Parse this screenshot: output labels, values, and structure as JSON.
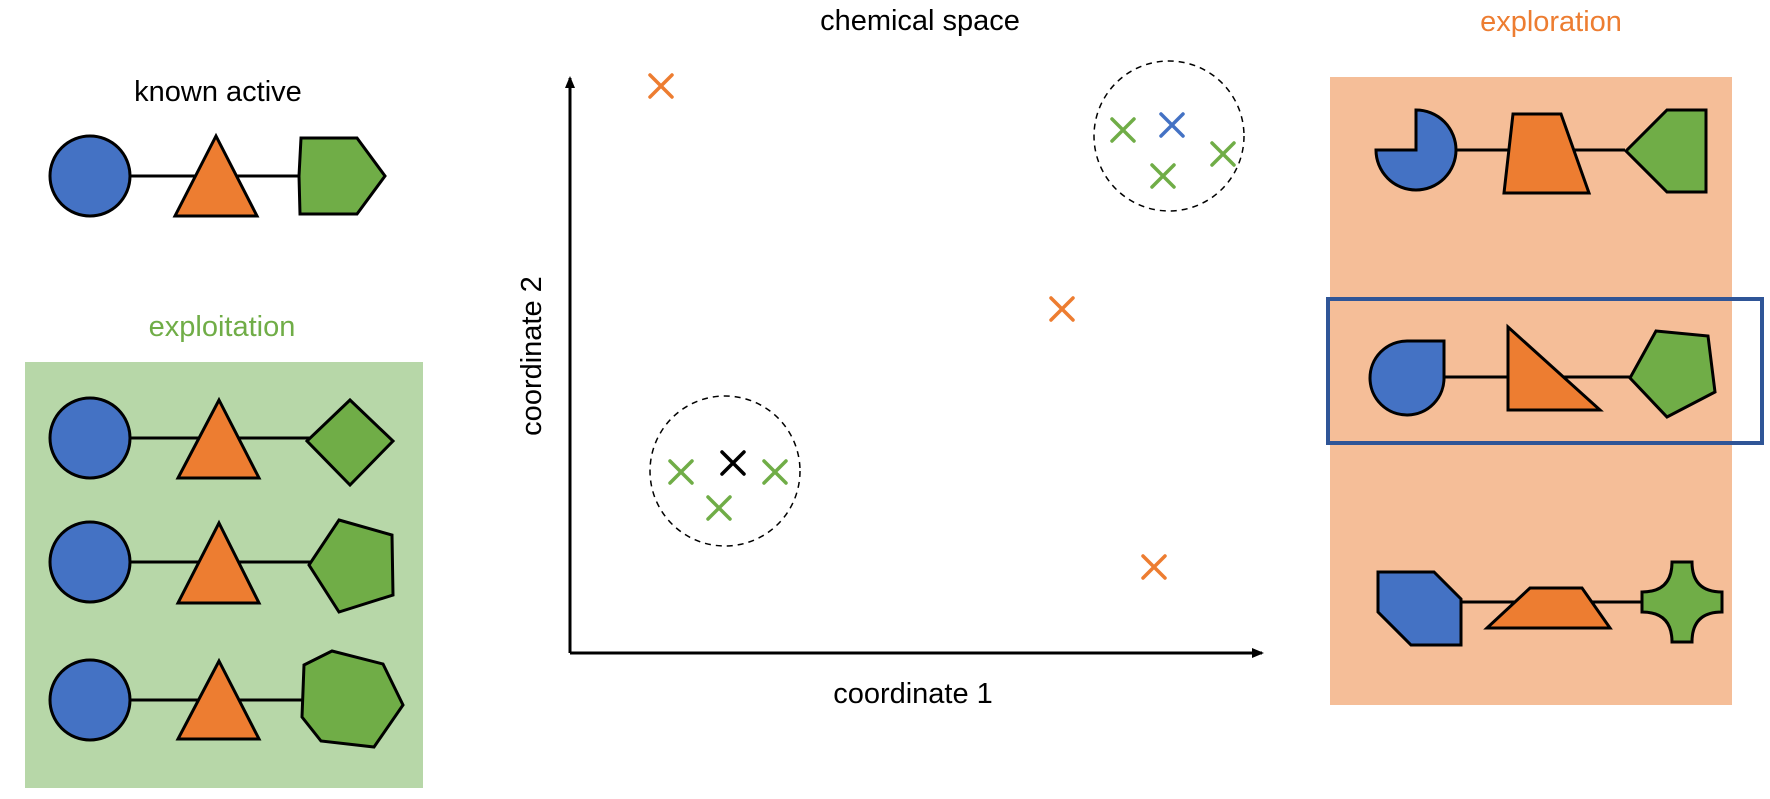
{
  "known_active": {
    "title": "known active",
    "shapes": [
      "circle-icon",
      "triangle-icon",
      "hexagon-icon"
    ]
  },
  "exploitation": {
    "title": "exploitation",
    "rows": [
      {
        "shapes": [
          "circle-icon",
          "triangle-icon",
          "diamond-icon"
        ]
      },
      {
        "shapes": [
          "circle-icon",
          "triangle-icon",
          "pentagon-icon"
        ]
      },
      {
        "shapes": [
          "circle-icon",
          "triangle-icon",
          "heptagon-icon"
        ]
      }
    ]
  },
  "chemical_space": {
    "title": "chemical space",
    "x_label": "coordinate 1",
    "y_label": "coordinate 2",
    "markers": [
      {
        "group": "exploration",
        "color": "#ED7D31"
      },
      {
        "group": "exploration",
        "color": "#ED7D31"
      },
      {
        "group": "exploration",
        "color": "#ED7D31"
      },
      {
        "group": "exploitation",
        "color": "#70AD47"
      },
      {
        "group": "exploitation",
        "color": "#70AD47"
      },
      {
        "group": "exploitation",
        "color": "#70AD47"
      },
      {
        "group": "known-active",
        "color": "#000000"
      },
      {
        "group": "exploration-cluster",
        "color": "#70AD47"
      },
      {
        "group": "exploration-cluster",
        "color": "#70AD47"
      },
      {
        "group": "exploration-cluster",
        "color": "#70AD47"
      },
      {
        "group": "selected",
        "color": "#4472C4"
      }
    ]
  },
  "exploration": {
    "title": "exploration",
    "rows": [
      {
        "shapes": [
          "three-quarter-circle-icon",
          "trapezoid-icon",
          "arrow-pentagon-icon"
        ],
        "selected": false
      },
      {
        "shapes": [
          "teardrop-icon",
          "right-triangle-icon",
          "pentagon-icon"
        ],
        "selected": true
      },
      {
        "shapes": [
          "cut-corner-hexagon-icon",
          "flat-trapezoid-icon",
          "concave-star-icon"
        ],
        "selected": false
      }
    ]
  },
  "colors": {
    "blue": "#4472C4",
    "orange": "#ED7D31",
    "green": "#70AD47",
    "green_panel": "#B7D7A8",
    "orange_panel": "#F5BE98",
    "selection_frame": "#2F5597",
    "exploitation_title": "#70AD47",
    "exploration_title": "#ED7D31"
  }
}
